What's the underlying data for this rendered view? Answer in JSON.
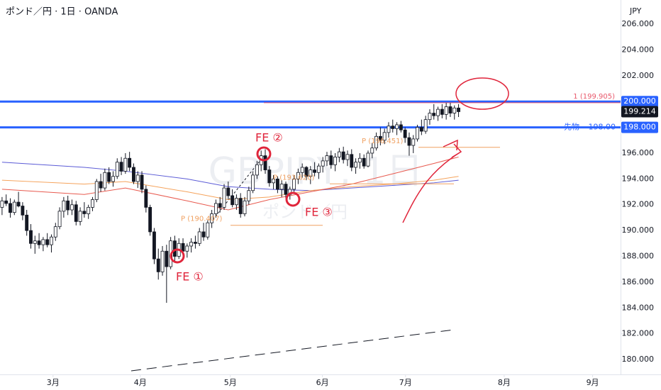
{
  "chart_data": {
    "type": "candlestick",
    "title": "ポンド／円 · 1日 · OANDA",
    "currency": "JPY",
    "watermark": [
      "GBPJPY, 1日",
      "ポンド／円"
    ],
    "ylim": [
      178.85,
      207.87
    ],
    "yticks": [
      {
        "value": 180,
        "label": "180.000"
      },
      {
        "value": 182,
        "label": "182.000"
      },
      {
        "value": 184,
        "label": "184.000"
      },
      {
        "value": 186,
        "label": "186.000"
      },
      {
        "value": 188,
        "label": "188.000"
      },
      {
        "value": 190,
        "label": "190.000"
      },
      {
        "value": 192,
        "label": "192.000"
      },
      {
        "value": 194,
        "label": "194.000"
      },
      {
        "value": 196,
        "label": "196.000"
      },
      {
        "value": 198,
        "label": "198.000"
      },
      {
        "value": 200,
        "label": "200.000"
      },
      {
        "value": 202,
        "label": "202.000"
      },
      {
        "value": 204,
        "label": "204.000"
      },
      {
        "value": 206,
        "label": "206.000"
      }
    ],
    "xlim": [
      -0.5,
      150.4
    ],
    "xticks": [
      {
        "value": 12.4,
        "label": "3月"
      },
      {
        "value": 33.6,
        "label": "4月"
      },
      {
        "value": 55.5,
        "label": "5月"
      },
      {
        "value": 77.9,
        "label": "6月"
      },
      {
        "value": 98.1,
        "label": "7月"
      },
      {
        "value": 122.1,
        "label": "8月"
      },
      {
        "value": 143.6,
        "label": "9月"
      }
    ],
    "grid": false,
    "up_color": "#ffffff",
    "down_color": "#131722",
    "edge_color": "#131722",
    "open": [
      191.8,
      192.3,
      192.1,
      191.4,
      192.2,
      191.9,
      191.2,
      190.0,
      189.0,
      189.2,
      188.9,
      189.3,
      188.9,
      189.5,
      190.3,
      191.5,
      192.3,
      191.6,
      192.0,
      190.7,
      191.5,
      191.3,
      191.8,
      192.4,
      193.8,
      193.3,
      194.5,
      193.8,
      194.2,
      195.3,
      194.6,
      195.6,
      194.9,
      193.8,
      194.3,
      193.2,
      191.8,
      189.9,
      187.8,
      186.8,
      188.4,
      187.2,
      189.2,
      188.0,
      189.0,
      188.4,
      188.8,
      189.1,
      189.0,
      189.9,
      189.5,
      190.6,
      191.3,
      192.1,
      191.8,
      193.3,
      192.7,
      192.0,
      192.5,
      191.3,
      192.3,
      193.1,
      194.3,
      195.1,
      195.8,
      194.7,
      193.7,
      194.0,
      193.2,
      193.6,
      192.8,
      193.2,
      194.0,
      194.5,
      194.9,
      194.2,
      194.7,
      194.5,
      195.0,
      195.4,
      195.8,
      195.1,
      195.7,
      196.1,
      195.5,
      195.9,
      194.9,
      195.3,
      195.6,
      195.0,
      196.0,
      196.4,
      197.3,
      197.0,
      197.6,
      198.1,
      197.9,
      198.2,
      197.8,
      197.2,
      196.6,
      197.1,
      198.0,
      197.7,
      198.6,
      199.1,
      198.9,
      199.4,
      199.0,
      199.6,
      199.1,
      199.5
    ],
    "high": [
      192.6,
      192.8,
      192.5,
      192.4,
      193.0,
      192.2,
      191.6,
      190.5,
      189.6,
      189.8,
      189.5,
      189.8,
      189.7,
      190.6,
      191.8,
      192.6,
      192.7,
      192.4,
      192.3,
      191.8,
      192.2,
      192.0,
      192.6,
      194.0,
      194.4,
      194.8,
      194.9,
      194.6,
      195.6,
      195.7,
      196.0,
      196.1,
      195.2,
      194.6,
      194.6,
      193.5,
      192.0,
      190.2,
      188.6,
      188.8,
      188.9,
      189.5,
      189.6,
      189.4,
      189.4,
      189.0,
      189.4,
      189.6,
      190.2,
      190.6,
      190.8,
      191.6,
      192.4,
      192.6,
      193.6,
      193.8,
      193.2,
      192.8,
      192.9,
      192.6,
      193.4,
      194.6,
      195.4,
      196.2,
      196.3,
      195.0,
      194.3,
      194.2,
      193.9,
      193.8,
      193.4,
      194.3,
      194.8,
      195.2,
      195.0,
      195.0,
      195.3,
      195.2,
      195.7,
      196.1,
      196.2,
      196.0,
      196.4,
      196.5,
      196.2,
      196.3,
      195.6,
      196.0,
      195.9,
      196.2,
      196.8,
      197.6,
      198.0,
      197.9,
      198.4,
      198.6,
      198.4,
      198.5,
      198.0,
      197.6,
      197.4,
      198.2,
      198.6,
      198.9,
      199.4,
      199.8,
      199.6,
      199.8,
      199.9,
      199.9,
      199.7,
      199.8
    ],
    "low": [
      191.2,
      191.9,
      191.0,
      191.2,
      191.8,
      190.8,
      189.6,
      188.6,
      188.2,
      188.6,
      188.4,
      188.7,
      188.3,
      189.2,
      190.1,
      191.0,
      191.2,
      191.2,
      190.4,
      190.4,
      191.0,
      190.9,
      191.5,
      192.2,
      193.0,
      193.1,
      193.6,
      193.4,
      194.0,
      194.3,
      194.4,
      194.6,
      193.6,
      193.3,
      192.9,
      191.4,
      189.6,
      187.4,
      186.2,
      186.5,
      184.4,
      187.0,
      187.6,
      187.8,
      188.1,
      187.9,
      188.3,
      188.6,
      188.8,
      189.2,
      189.3,
      190.2,
      191.0,
      191.4,
      191.6,
      192.4,
      191.8,
      191.6,
      191.0,
      191.1,
      192.0,
      192.9,
      194.0,
      194.6,
      194.4,
      193.4,
      193.2,
      192.9,
      192.6,
      192.5,
      192.4,
      193.0,
      193.6,
      194.1,
      193.9,
      193.6,
      194.2,
      194.0,
      194.5,
      195.0,
      194.8,
      194.6,
      195.3,
      195.2,
      195.0,
      194.6,
      194.4,
      194.8,
      194.8,
      194.9,
      195.6,
      196.2,
      196.6,
      196.7,
      197.2,
      197.6,
      197.4,
      197.6,
      196.8,
      195.8,
      196.0,
      196.9,
      197.4,
      197.5,
      198.2,
      198.6,
      198.5,
      198.7,
      198.6,
      198.8,
      198.6,
      198.8
    ],
    "close": [
      192.3,
      192.1,
      191.4,
      192.2,
      191.9,
      191.2,
      190.0,
      189.0,
      189.2,
      188.9,
      189.3,
      188.9,
      189.5,
      190.3,
      191.5,
      192.3,
      191.6,
      192.0,
      190.7,
      191.5,
      191.3,
      191.8,
      192.4,
      193.8,
      193.3,
      194.5,
      193.8,
      194.2,
      195.3,
      194.6,
      195.6,
      194.9,
      193.8,
      194.3,
      193.2,
      191.8,
      189.9,
      187.8,
      186.8,
      188.4,
      187.2,
      189.2,
      188.0,
      189.0,
      188.4,
      188.8,
      189.1,
      189.0,
      189.9,
      189.5,
      190.6,
      191.3,
      192.1,
      191.8,
      193.3,
      192.7,
      192.0,
      192.5,
      191.3,
      192.3,
      193.1,
      194.3,
      195.1,
      195.8,
      194.7,
      193.7,
      194.0,
      193.2,
      193.6,
      192.8,
      193.2,
      194.0,
      194.5,
      194.9,
      194.2,
      194.7,
      194.5,
      195.0,
      195.4,
      195.8,
      195.1,
      195.7,
      196.1,
      195.5,
      195.9,
      194.9,
      195.3,
      195.6,
      195.0,
      196.0,
      196.4,
      197.3,
      197.0,
      197.6,
      198.1,
      197.9,
      198.2,
      197.8,
      197.2,
      196.6,
      197.1,
      198.0,
      197.7,
      198.6,
      199.1,
      198.9,
      199.4,
      199.0,
      199.6,
      199.1,
      199.5,
      199.214
    ],
    "last_price": 199.214,
    "moving_averages": [
      {
        "color": "#5b5bd6",
        "x": [
          0,
          20,
          30,
          45,
          55,
          65,
          75,
          85,
          95,
          105,
          111
        ],
        "values": [
          195.3,
          194.9,
          194.6,
          194.0,
          193.4,
          193.2,
          193.1,
          193.3,
          193.5,
          193.7,
          193.9
        ]
      },
      {
        "color": "#f5a35c",
        "x": [
          0,
          20,
          30,
          45,
          55,
          65,
          75,
          85,
          95,
          105,
          111
        ],
        "values": [
          193.9,
          193.6,
          193.8,
          193.0,
          192.4,
          192.6,
          193.1,
          193.4,
          193.6,
          193.9,
          194.2
        ]
      },
      {
        "color": "#e85a4f",
        "x": [
          0,
          20,
          30,
          45,
          55,
          65,
          75,
          85,
          95,
          105,
          111
        ],
        "values": [
          193.2,
          192.8,
          193.3,
          192.3,
          191.6,
          192.4,
          193.0,
          193.6,
          194.4,
          195.2,
          195.7
        ]
      }
    ],
    "levels": [
      {
        "value": 200,
        "axis_label": "200.000",
        "color": "#2962ff"
      },
      {
        "value": 198,
        "axis_label": "198.000",
        "name": "先物",
        "value_label": "198.00",
        "color": "#2962ff"
      },
      {
        "value": 199.905,
        "label": "1 (199.905)",
        "color": "#e8586b"
      },
      {
        "value": 196.451,
        "label": "P (196.451)",
        "color": "#f0a060"
      },
      {
        "value": 193.62,
        "label": "P (193.620)",
        "color": "#f0a060"
      },
      {
        "value": 190.407,
        "label": "P (190.407)",
        "color": "#f0a060"
      }
    ],
    "annotations": [
      "FE ①",
      "FE ②",
      "FE ③"
    ]
  }
}
